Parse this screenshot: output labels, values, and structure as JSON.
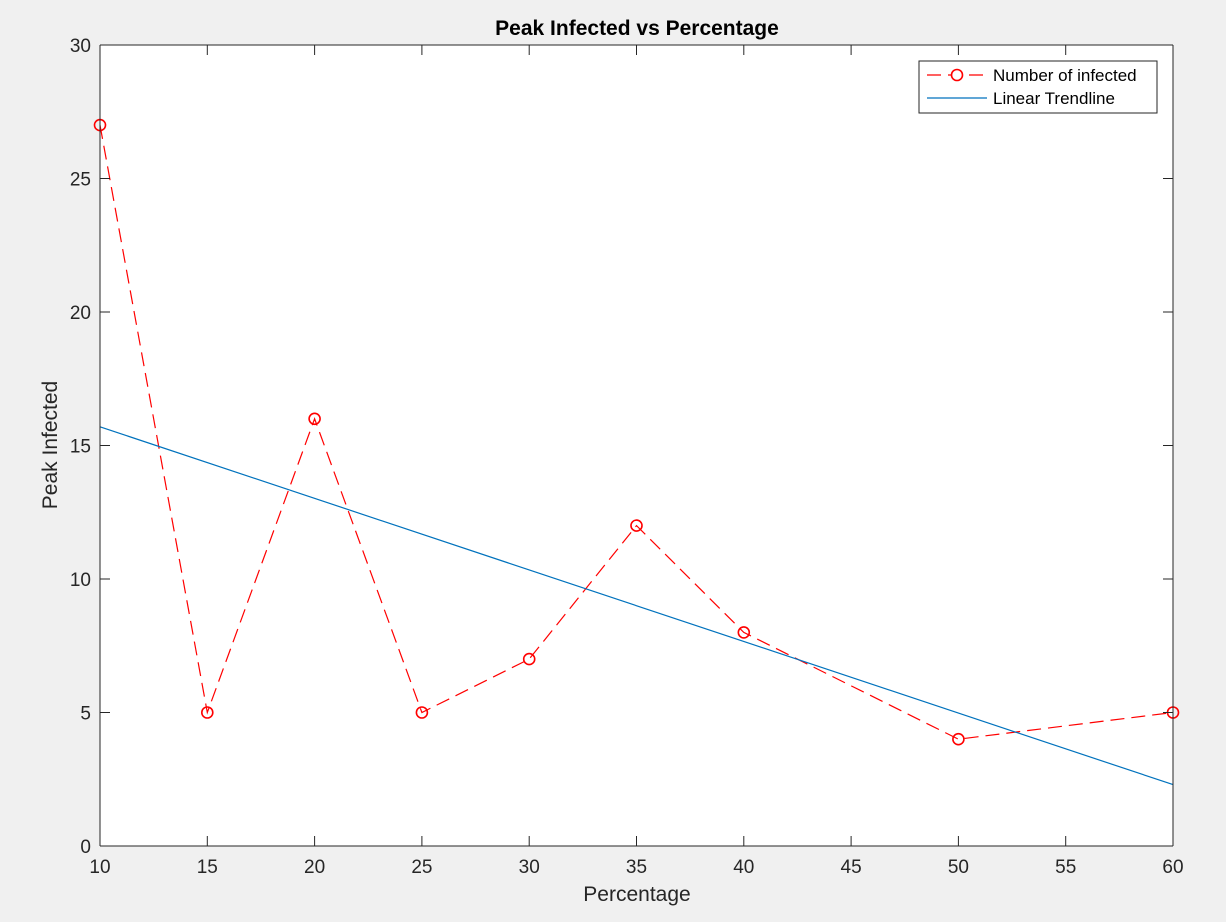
{
  "chart_data": {
    "type": "line",
    "title": "Peak Infected vs Percentage",
    "xlabel": "Percentage",
    "ylabel": "Peak Infected",
    "xlim": [
      10,
      60
    ],
    "ylim": [
      0,
      30
    ],
    "xticks": [
      10,
      15,
      20,
      25,
      30,
      35,
      40,
      45,
      50,
      55,
      60
    ],
    "yticks": [
      0,
      5,
      10,
      15,
      20,
      25,
      30
    ],
    "grid": false,
    "legend_position": "top-right",
    "series": [
      {
        "name": "Number of infected",
        "style": "dashed line with circle markers",
        "color": "#ff0000",
        "x": [
          10,
          15,
          20,
          25,
          30,
          35,
          40,
          50,
          60
        ],
        "y": [
          27,
          5,
          16,
          5,
          7,
          12,
          8,
          4,
          5
        ]
      },
      {
        "name": "Linear Trendline",
        "style": "solid line",
        "color": "#0072bd",
        "x": [
          10,
          60
        ],
        "y": [
          15.7,
          2.3
        ]
      }
    ]
  }
}
